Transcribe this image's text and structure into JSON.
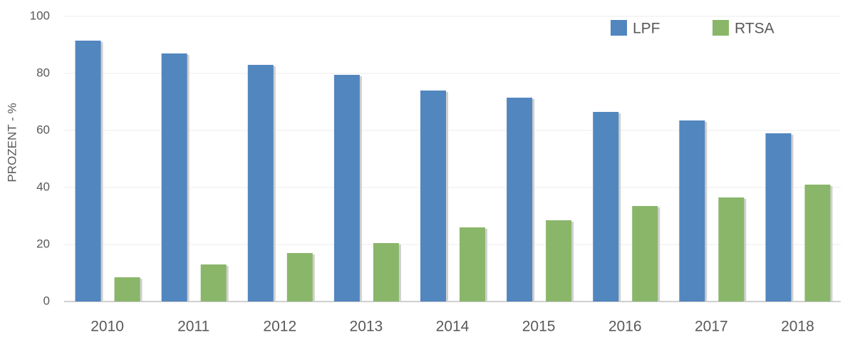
{
  "chart_data": {
    "type": "bar",
    "y_label": "PROZENT - %",
    "categories": [
      "2010",
      "2011",
      "2012",
      "2013",
      "2014",
      "2015",
      "2016",
      "2017",
      "2018"
    ],
    "series": [
      {
        "name": "LPF",
        "color": "#5286bf",
        "values": [
          91.5,
          87,
          83,
          79.5,
          74,
          71.5,
          66.5,
          63.5,
          59
        ]
      },
      {
        "name": "RTSA",
        "color": "#8ab66a",
        "values": [
          8.5,
          13,
          17,
          20.5,
          26,
          28.5,
          33.5,
          36.5,
          41
        ]
      }
    ],
    "ylim": [
      0,
      100
    ],
    "yticks": [
      0,
      20,
      40,
      60,
      80,
      100
    ],
    "grid": true,
    "legend": "top-right"
  }
}
